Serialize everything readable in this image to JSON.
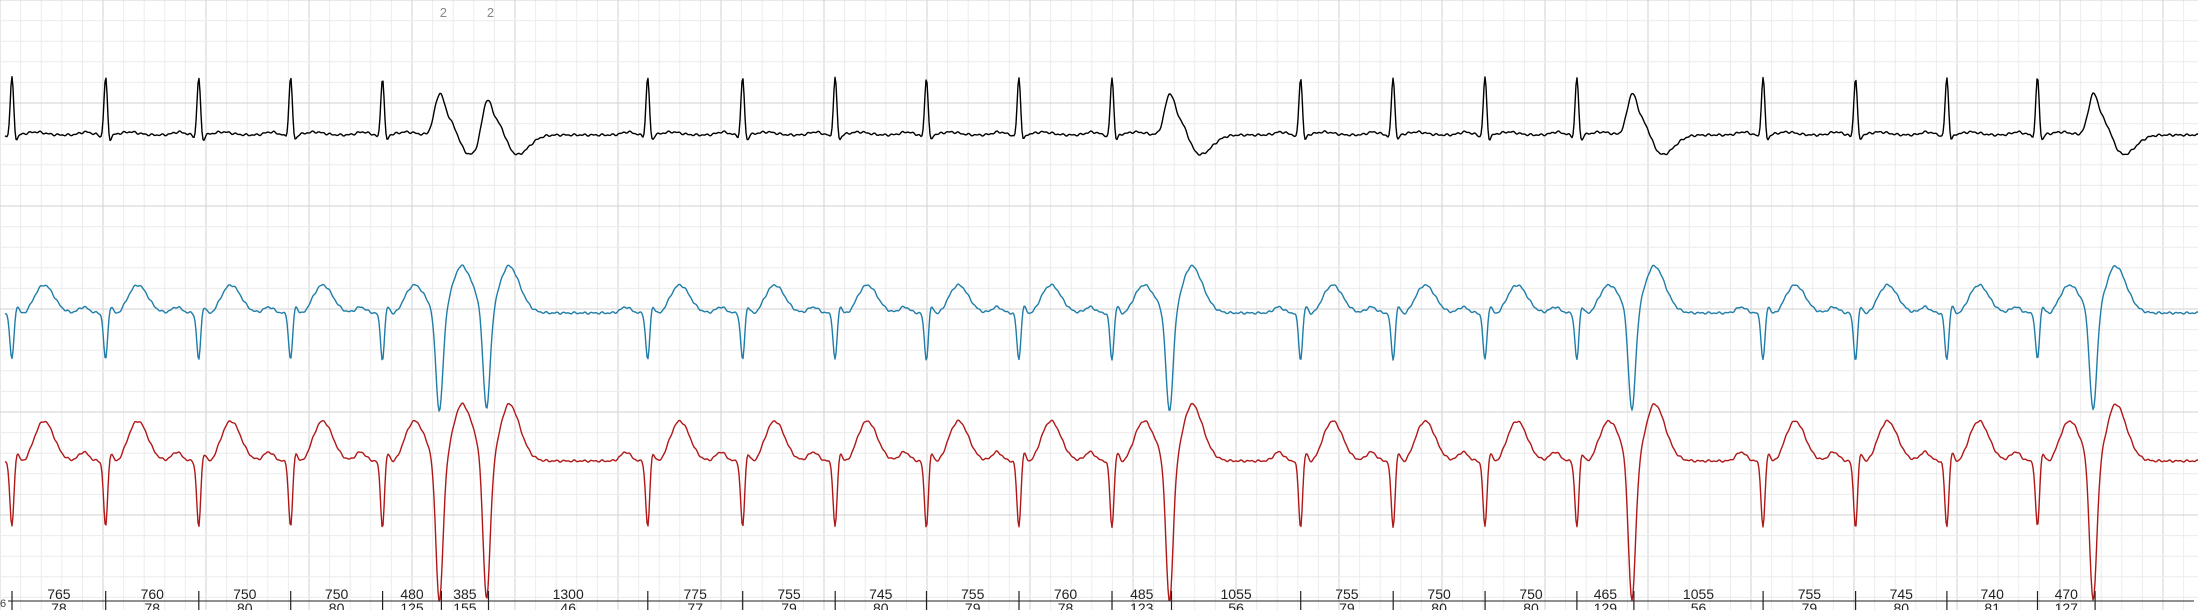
{
  "colors": {
    "background": "#ffffff",
    "grid_minor": "#ececec",
    "grid_major": "#d2d2d2",
    "lead_1": "#000000",
    "lead_2": "#1f7da8",
    "lead_3": "#b01818",
    "ruler": "#222222"
  },
  "strip": {
    "leads": [
      {
        "name": "",
        "color_key": "lead_1",
        "morphology": "upright"
      },
      {
        "name": "",
        "color_key": "lead_2",
        "morphology": "biphasic"
      },
      {
        "name": "",
        "color_key": "lead_3",
        "morphology": "biphasic"
      }
    ],
    "beats": [
      {
        "rr_ms": 765,
        "rate_bpm": 78,
        "type": "N",
        "annotation": ""
      },
      {
        "rr_ms": 760,
        "rate_bpm": 78,
        "type": "N",
        "annotation": ""
      },
      {
        "rr_ms": 750,
        "rate_bpm": 80,
        "type": "N",
        "annotation": ""
      },
      {
        "rr_ms": 750,
        "rate_bpm": 80,
        "type": "N",
        "annotation": ""
      },
      {
        "rr_ms": 480,
        "rate_bpm": 125,
        "type": "N",
        "annotation": ""
      },
      {
        "rr_ms": 385,
        "rate_bpm": 155,
        "type": "V",
        "annotation": "2"
      },
      {
        "rr_ms": 1300,
        "rate_bpm": 46,
        "type": "V",
        "annotation": "2"
      },
      {
        "rr_ms": 775,
        "rate_bpm": 77,
        "type": "N",
        "annotation": ""
      },
      {
        "rr_ms": 755,
        "rate_bpm": 79,
        "type": "N",
        "annotation": ""
      },
      {
        "rr_ms": 745,
        "rate_bpm": 80,
        "type": "N",
        "annotation": ""
      },
      {
        "rr_ms": 755,
        "rate_bpm": 79,
        "type": "N",
        "annotation": ""
      },
      {
        "rr_ms": 760,
        "rate_bpm": 78,
        "type": "N",
        "annotation": ""
      },
      {
        "rr_ms": 485,
        "rate_bpm": 123,
        "type": "N",
        "annotation": ""
      },
      {
        "rr_ms": 1055,
        "rate_bpm": 56,
        "type": "V",
        "annotation": ""
      },
      {
        "rr_ms": 755,
        "rate_bpm": 79,
        "type": "N",
        "annotation": ""
      },
      {
        "rr_ms": 750,
        "rate_bpm": 80,
        "type": "N",
        "annotation": ""
      },
      {
        "rr_ms": 750,
        "rate_bpm": 80,
        "type": "N",
        "annotation": ""
      },
      {
        "rr_ms": 465,
        "rate_bpm": 129,
        "type": "N",
        "annotation": ""
      },
      {
        "rr_ms": 1055,
        "rate_bpm": 56,
        "type": "V",
        "annotation": ""
      },
      {
        "rr_ms": 755,
        "rate_bpm": 79,
        "type": "N",
        "annotation": ""
      },
      {
        "rr_ms": 745,
        "rate_bpm": 80,
        "type": "N",
        "annotation": ""
      },
      {
        "rr_ms": 740,
        "rate_bpm": 81,
        "type": "N",
        "annotation": ""
      },
      {
        "rr_ms": 470,
        "rate_bpm": 127,
        "type": "N",
        "annotation": ""
      },
      {
        "rr_ms": null,
        "rate_bpm": null,
        "type": "V",
        "annotation": ""
      }
    ],
    "edge_label": "6"
  }
}
